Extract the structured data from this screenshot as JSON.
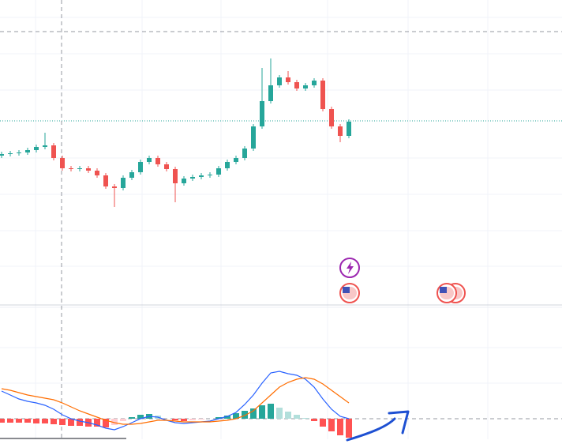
{
  "chart_data": {
    "type": "candlestick",
    "up_color": "#26a69a",
    "down_color": "#ef5350",
    "ylim": [
      0,
      386
    ],
    "open": [
      189,
      191,
      192,
      193,
      196,
      200,
      202,
      186,
      173,
      172,
      173,
      170,
      164,
      150,
      148,
      161,
      168,
      181,
      186,
      178,
      172,
      154,
      160,
      162,
      164,
      165,
      173,
      181,
      186,
      198,
      226,
      258,
      278,
      288,
      282,
      274,
      278,
      284,
      248,
      226,
      214
    ],
    "close": [
      191,
      192,
      193,
      196,
      200,
      202,
      186,
      173,
      172,
      173,
      170,
      164,
      150,
      148,
      161,
      168,
      181,
      186,
      178,
      172,
      154,
      160,
      162,
      164,
      165,
      173,
      181,
      186,
      198,
      226,
      258,
      278,
      288,
      282,
      274,
      278,
      284,
      248,
      226,
      214,
      232
    ],
    "high": [
      194,
      195,
      196,
      199,
      203,
      218,
      205,
      189,
      176,
      176,
      176,
      173,
      167,
      153,
      164,
      171,
      184,
      189,
      189,
      181,
      175,
      163,
      165,
      167,
      168,
      176,
      184,
      189,
      201,
      229,
      300,
      312,
      291,
      296,
      285,
      281,
      287,
      287,
      251,
      229,
      235
    ],
    "low": [
      186,
      188,
      189,
      190,
      193,
      197,
      183,
      170,
      169,
      169,
      167,
      161,
      147,
      124,
      145,
      158,
      165,
      178,
      175,
      169,
      130,
      151,
      157,
      159,
      161,
      162,
      170,
      178,
      183,
      195,
      223,
      255,
      275,
      279,
      271,
      271,
      275,
      245,
      223,
      206,
      211
    ],
    "macd_panel": {
      "ylim": [
        -26,
        140
      ],
      "histogram": {
        "values": [
          -5,
          -5,
          -5,
          -5,
          -6,
          -6,
          -7,
          -8,
          -9,
          -9,
          -10,
          -10,
          -11,
          -8,
          -3,
          2,
          5,
          6,
          4,
          0,
          -2,
          -3,
          -2,
          -1,
          0,
          2,
          4,
          7,
          10,
          13,
          17,
          19,
          14,
          9,
          5,
          1,
          -3,
          -10,
          -16,
          -21,
          -24
        ],
        "colors": {
          "pos_up": "#26a69a",
          "pos_down": "#b2dfdb",
          "neg_down": "#ff5252",
          "neg_up": "#ffcdd2"
        }
      },
      "macd": {
        "color": "#2962ff",
        "values": [
          35,
          30,
          25,
          22,
          20,
          17,
          12,
          5,
          0,
          -3,
          -5,
          -8,
          -12,
          -14,
          -10,
          -5,
          0,
          3,
          2,
          -2,
          -5,
          -6,
          -5,
          -4,
          -3,
          0,
          3,
          8,
          18,
          30,
          45,
          58,
          60,
          57,
          55,
          50,
          40,
          25,
          12,
          3,
          0
        ]
      },
      "signal": {
        "color": "#ff6d00",
        "values": [
          38,
          36,
          33,
          30,
          28,
          26,
          24,
          20,
          15,
          10,
          6,
          2,
          -2,
          -5,
          -7,
          -7,
          -6,
          -4,
          -2,
          -2,
          -3,
          -4,
          -4,
          -4,
          -4,
          -3,
          -2,
          0,
          4,
          10,
          20,
          30,
          40,
          46,
          50,
          52,
          50,
          44,
          36,
          28,
          20
        ]
      }
    }
  }
}
